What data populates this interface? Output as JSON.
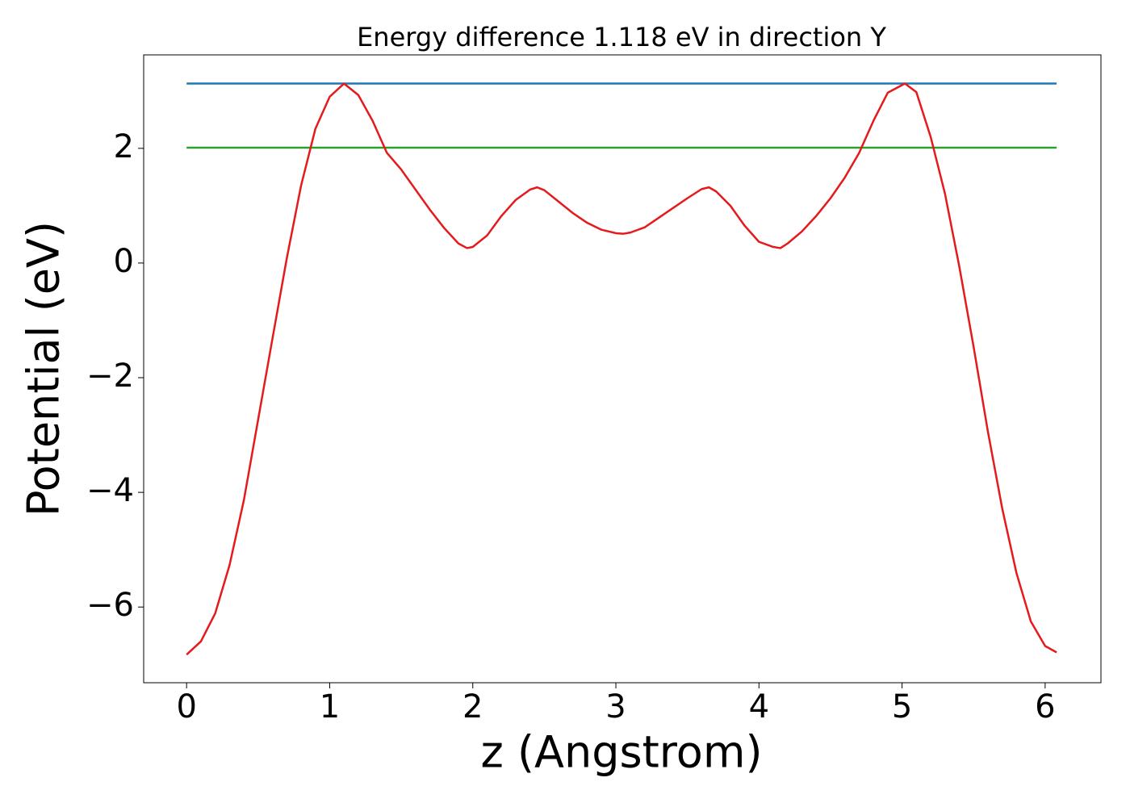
{
  "chart_data": {
    "type": "line",
    "title": "Energy difference 1.118 eV in direction Y",
    "x_label": "z (Angstrom)",
    "y_label": "Potential (eV)",
    "xlim": [
      -0.3,
      6.39
    ],
    "ylim": [
      -7.32,
      3.63
    ],
    "xticks": [
      0,
      1,
      2,
      3,
      4,
      5,
      6
    ],
    "yticks": [
      {
        "value": -6,
        "label": "−6"
      },
      {
        "value": -4,
        "label": "−4"
      },
      {
        "value": -2,
        "label": "−2"
      },
      0,
      2
    ],
    "grid": false,
    "series": [
      {
        "color": "#1f77b4",
        "x": [
          0,
          6.08
        ],
        "values": [
          3.13,
          3.13
        ]
      },
      {
        "color": "#2ca02c",
        "x": [
          0,
          6.08
        ],
        "values": [
          2.012,
          2.012
        ]
      },
      {
        "color": "#e41a1c",
        "x": [
          0,
          0.1,
          0.2,
          0.3,
          0.4,
          0.5,
          0.6,
          0.7,
          0.8,
          0.9,
          1.0,
          1.1,
          1.2,
          1.3,
          1.4,
          1.5,
          1.6,
          1.7,
          1.8,
          1.9,
          1.96,
          2.0,
          2.1,
          2.2,
          2.3,
          2.4,
          2.45,
          2.5,
          2.6,
          2.7,
          2.8,
          2.9,
          3.0,
          3.05,
          3.1,
          3.2,
          3.3,
          3.4,
          3.5,
          3.6,
          3.65,
          3.7,
          3.8,
          3.9,
          4.0,
          4.1,
          4.15,
          4.2,
          4.3,
          4.4,
          4.5,
          4.6,
          4.7,
          4.8,
          4.9,
          5.02,
          5.1,
          5.2,
          5.3,
          5.4,
          5.5,
          5.6,
          5.7,
          5.8,
          5.9,
          6.0,
          6.08
        ],
        "values": [
          -6.83,
          -6.6,
          -6.11,
          -5.27,
          -4.14,
          -2.73,
          -1.32,
          0.08,
          1.35,
          2.34,
          2.9,
          3.13,
          2.93,
          2.48,
          1.92,
          1.63,
          1.28,
          0.93,
          0.61,
          0.34,
          0.26,
          0.28,
          0.48,
          0.82,
          1.1,
          1.28,
          1.32,
          1.27,
          1.07,
          0.87,
          0.7,
          0.58,
          0.52,
          0.51,
          0.53,
          0.62,
          0.79,
          0.96,
          1.13,
          1.29,
          1.32,
          1.25,
          1.0,
          0.65,
          0.37,
          0.28,
          0.26,
          0.34,
          0.55,
          0.82,
          1.13,
          1.49,
          1.92,
          2.48,
          2.97,
          3.13,
          2.98,
          2.2,
          1.21,
          -0.06,
          -1.46,
          -2.94,
          -4.28,
          -5.41,
          -6.25,
          -6.68,
          -6.79
        ]
      }
    ]
  }
}
